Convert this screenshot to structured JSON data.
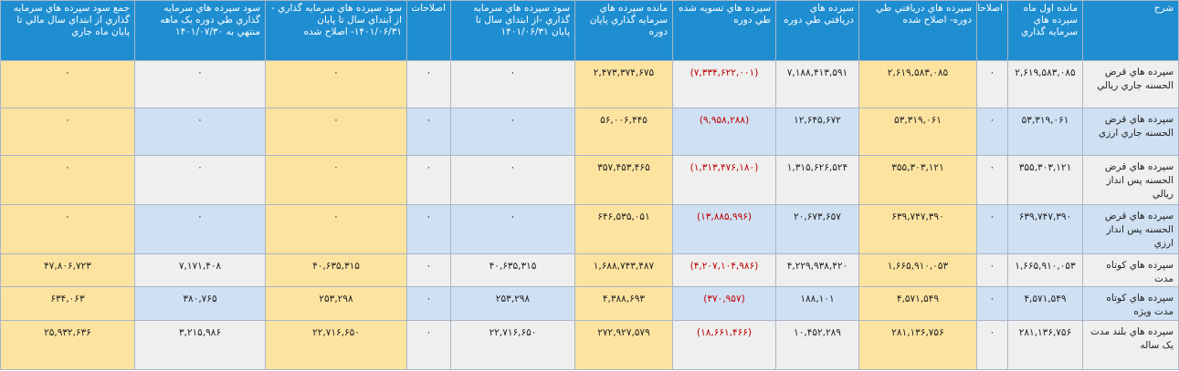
{
  "headers": [
    "شرح",
    "مانده اول ماه سپرده هاي سرمايه گذاري",
    "اصلاحات",
    "سپرده هاي دريافتي طي دوره- اصلاح شده",
    "سپرده هاي دريافتي طي دوره",
    "سپرده هاي تسويه شده طي دوره",
    "مانده سپرده هاي سرمايه گذاري پايان دوره",
    "سود سپرده هاي سرمايه گذاري -از ابتداي سال تا پايان ۱۴۰۱/۰۶/۳۱",
    "اصلاحات",
    "سود سپرده هاي سرمايه گذاري - از ابتداي سال تا پايان ۱۴۰۱/۰۶/۳۱- اصلاح شده",
    "سود سپرده هاي سرمايه گذاري طي دوره يک ماهه منتهي به ۱۴۰۱/۰۷/۳۰",
    "جمع سود سپرده هاي سرمايه گذاري از ابتداي سال مالي تا پايان ماه جاري"
  ],
  "rows": [
    [
      "سپرده هاي قرض الحسنه جاري ريالي",
      "۲,۶۱۹,۵۸۳,۰۸۵",
      "۰",
      "۲,۶۱۹,۵۸۳,۰۸۵",
      "۷,۱۸۸,۴۱۳,۵۹۱",
      "(۷,۳۳۴,۶۲۲,۰۰۱)",
      "۲,۴۷۳,۳۷۴,۶۷۵",
      "۰",
      "۰",
      "۰",
      "۰",
      "۰"
    ],
    [
      "سپرده هاي قرض الحسنه جاري ارزي",
      "۵۳,۳۱۹,۰۶۱",
      "۰",
      "۵۳,۳۱۹,۰۶۱",
      "۱۲,۶۴۵,۶۷۲",
      "(۹,۹۵۸,۲۸۸)",
      "۵۶,۰۰۶,۴۴۵",
      "۰",
      "۰",
      "۰",
      "۰",
      "۰"
    ],
    [
      "سپرده هاي قرض الحسنه پس انداز ريالي",
      "۳۵۵,۳۰۳,۱۲۱",
      "۰",
      "۳۵۵,۳۰۳,۱۲۱",
      "۱,۳۱۵,۶۲۶,۵۲۴",
      "(۱,۳۱۳,۴۷۶,۱۸۰)",
      "۳۵۷,۴۵۳,۴۶۵",
      "۰",
      "۰",
      "۰",
      "۰",
      "۰"
    ],
    [
      "سپرده هاي قرض الحسنه پس انداز ارزي",
      "۶۳۹,۷۴۷,۳۹۰",
      "۰",
      "۶۳۹,۷۴۷,۳۹۰",
      "۲۰,۶۷۳,۶۵۷",
      "(۱۳,۸۸۵,۹۹۶)",
      "۶۴۶,۵۳۵,۰۵۱",
      "۰",
      "۰",
      "۰",
      "۰",
      "۰"
    ],
    [
      "سپرده هاي کوتاه مدت",
      "۱,۶۶۵,۹۱۰,۰۵۳",
      "۰",
      "۱,۶۶۵,۹۱۰,۰۵۳",
      "۴,۲۲۹,۹۳۸,۴۲۰",
      "(۴,۲۰۷,۱۰۴,۹۸۶)",
      "۱,۶۸۸,۷۴۳,۴۸۷",
      "۴۰,۶۳۵,۳۱۵",
      "۰",
      "۴۰,۶۳۵,۳۱۵",
      "۷,۱۷۱,۴۰۸",
      "۴۷,۸۰۶,۷۲۳"
    ],
    [
      "سپرده هاي کوتاه مدت ويژه",
      "۴,۵۷۱,۵۴۹",
      "۰",
      "۴,۵۷۱,۵۴۹",
      "۱۸۸,۱۰۱",
      "(۳۷۰,۹۵۷)",
      "۴,۳۸۸,۶۹۳",
      "۲۵۳,۲۹۸",
      "۰",
      "۲۵۳,۲۹۸",
      "۳۸۰,۷۶۵",
      "۶۳۴,۰۶۳"
    ],
    [
      "سپرده هاي بلند مدت يک ساله",
      "۲۸۱,۱۳۶,۷۵۶",
      "۰",
      "۲۸۱,۱۳۶,۷۵۶",
      "۱۰,۴۵۲,۲۸۹",
      "(۱۸,۶۶۱,۴۶۶)",
      "۲۷۲,۹۲۷,۵۷۹",
      "۲۲,۷۱۶,۶۵۰",
      "۰",
      "۲۲,۷۱۶,۶۵۰",
      "۳,۲۱۵,۹۸۶",
      "۲۵,۹۳۲,۶۳۶"
    ]
  ],
  "colors": {
    "header": "#1f8ed1",
    "row_alt": "#cfe0f3",
    "row_base": "#efefef",
    "highlight": "#fde3a0",
    "negative": "#c00000"
  }
}
